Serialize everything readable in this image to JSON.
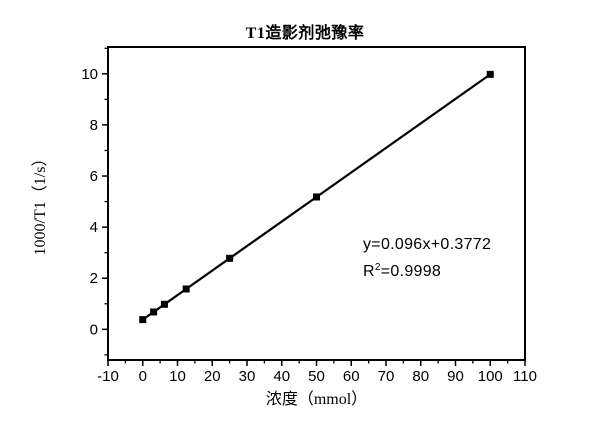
{
  "colors": {
    "ink": "#000000",
    "background": "#ffffff"
  },
  "chart_data": {
    "type": "scatter",
    "title": "T1造影剂弛豫率",
    "xlabel": "浓度（mmol）",
    "ylabel": "1000/T1（1/s）",
    "x": [
      0,
      3.125,
      6.25,
      12.5,
      25,
      50,
      100
    ],
    "y": [
      0.38,
      0.68,
      0.98,
      1.58,
      2.78,
      5.18,
      9.98
    ],
    "xlim": [
      -10,
      110
    ],
    "ylim": [
      -1.2,
      11.05
    ],
    "x_major_ticks": [
      -10,
      0,
      10,
      20,
      30,
      40,
      50,
      60,
      70,
      80,
      90,
      100,
      110
    ],
    "y_major_ticks": [
      0,
      2,
      4,
      6,
      8,
      10
    ],
    "x_minor_step": 5,
    "y_minor_step": 1,
    "grid": false,
    "legend": "none",
    "marker": "square",
    "marker_color": "#000000",
    "line_color": "#000000",
    "annotation": {
      "line1": "y=0.096x+0.3772",
      "line2_base": "R",
      "line2_sup": "2",
      "line2_rest": "=0.9998"
    },
    "fit": {
      "slope": 0.096,
      "intercept": 0.3772,
      "r_squared": 0.9998
    }
  }
}
